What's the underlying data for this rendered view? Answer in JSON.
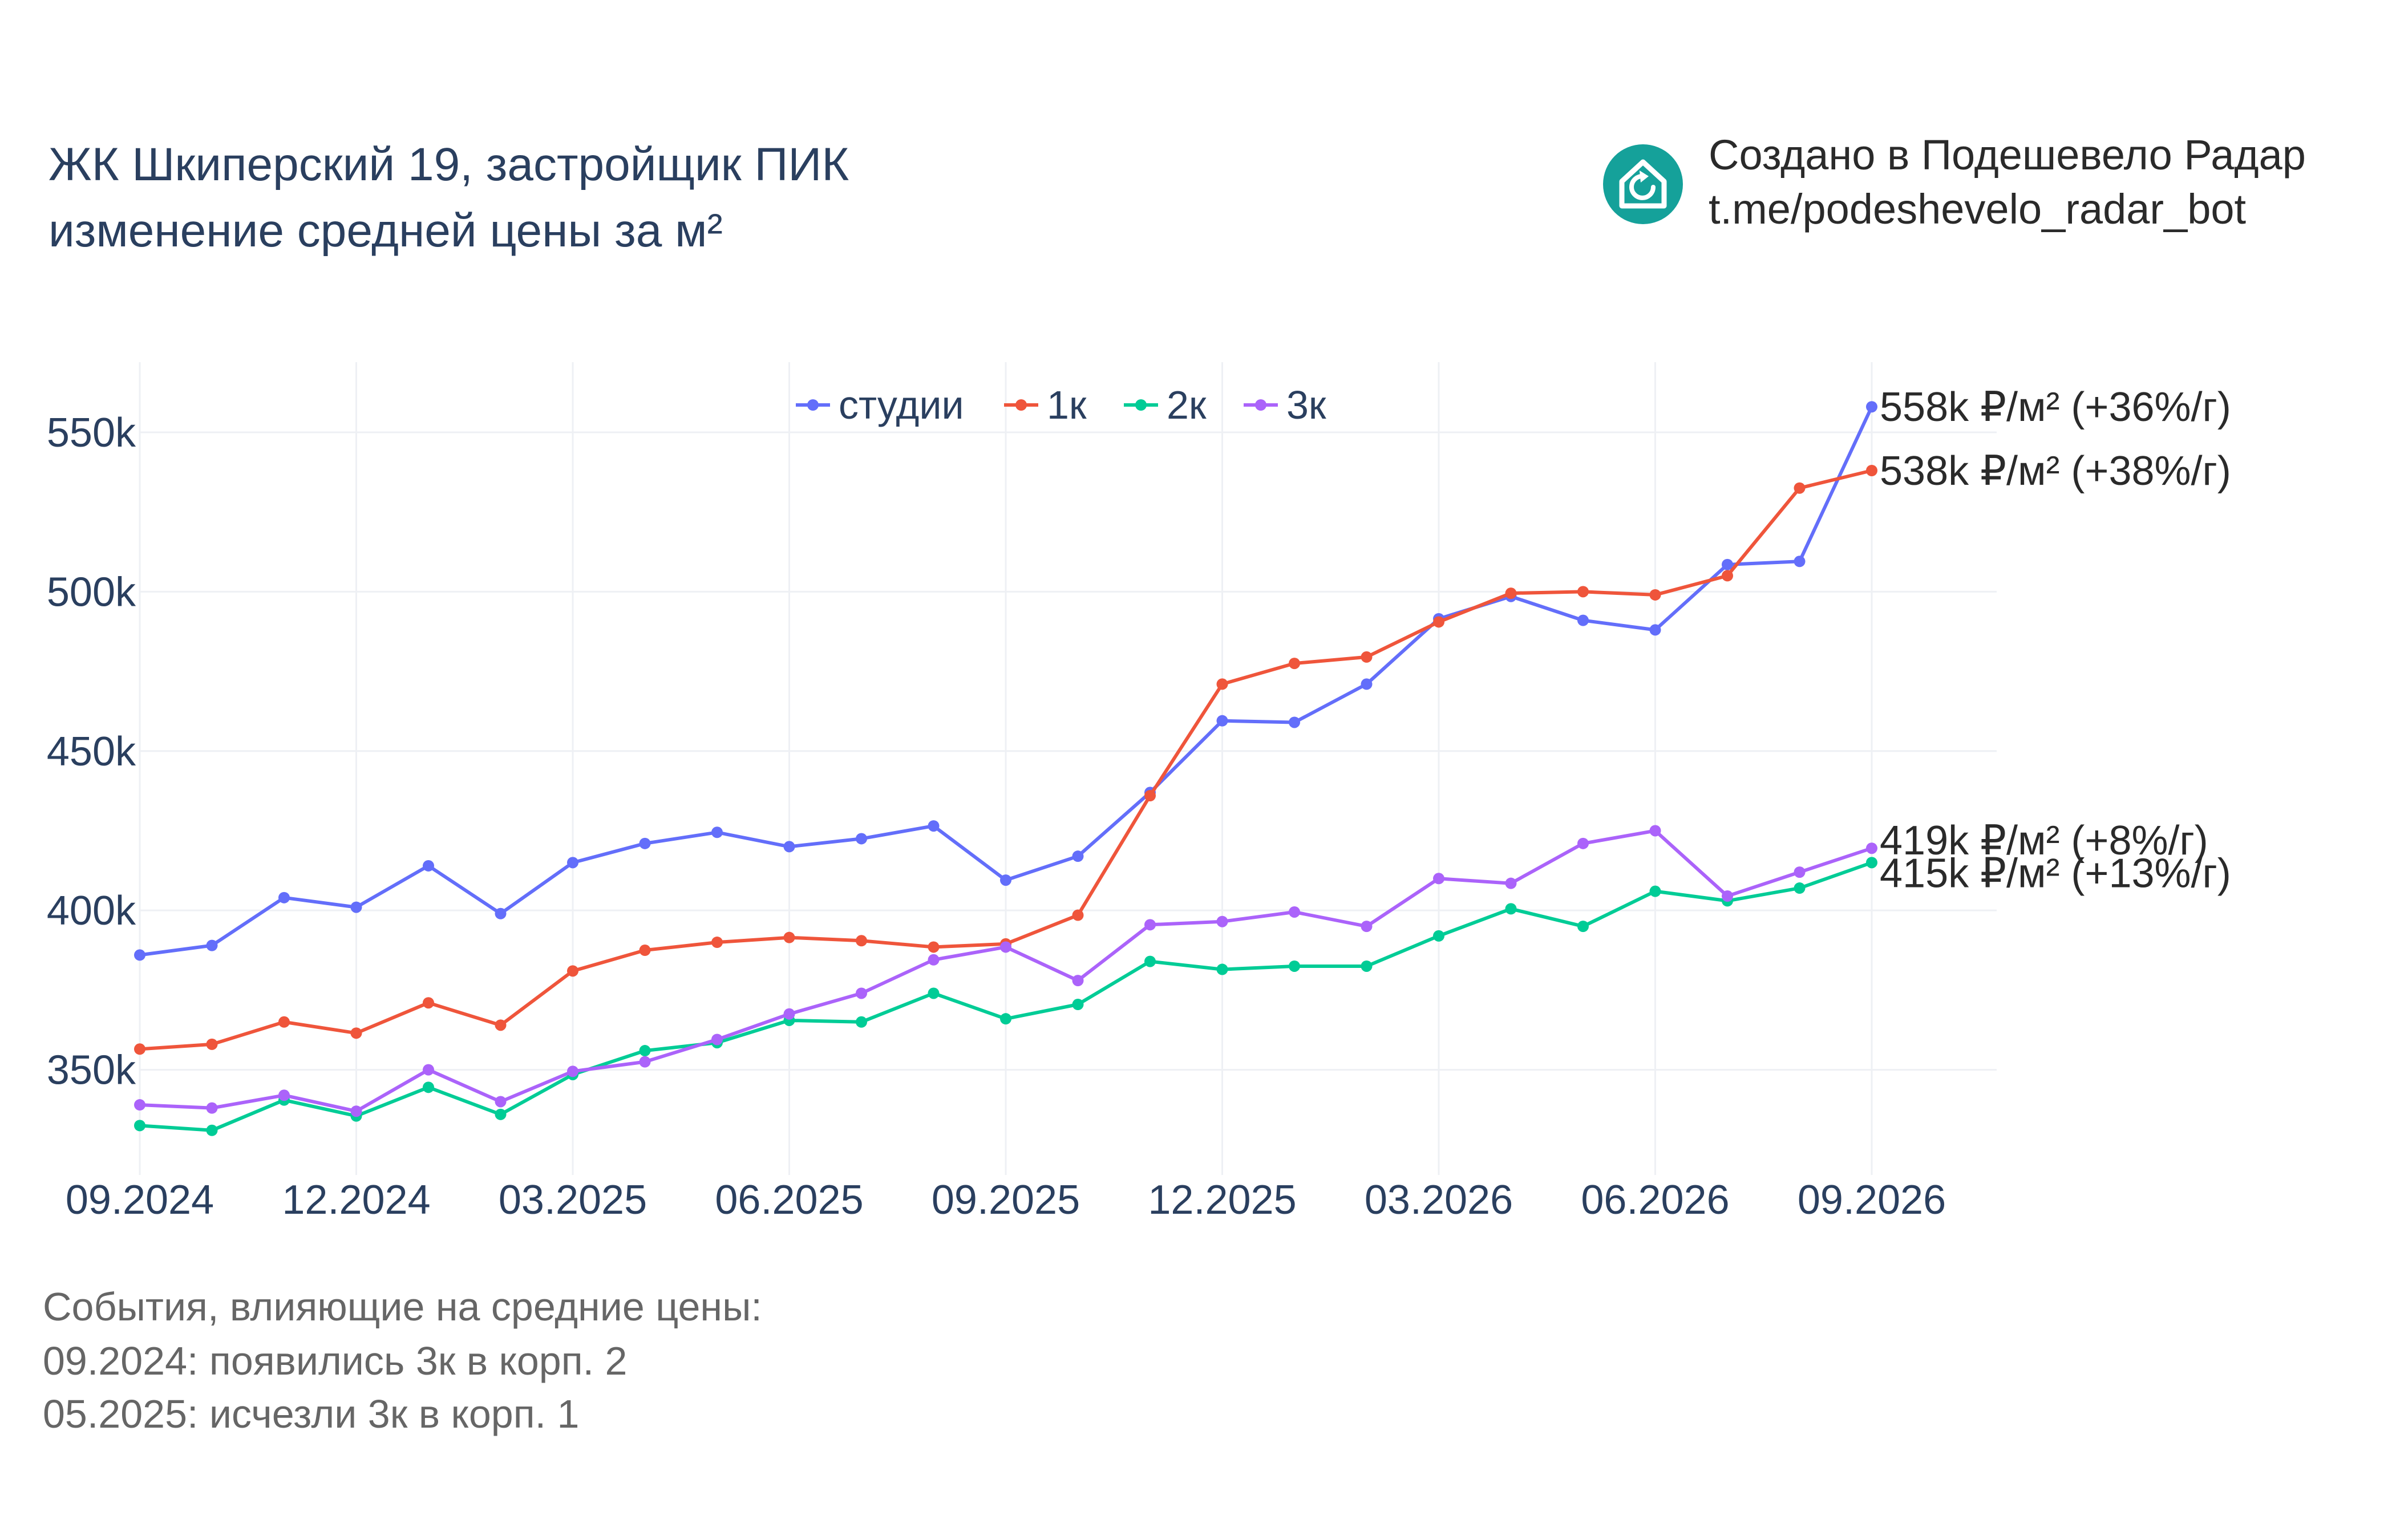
{
  "title_lines": [
    "ЖК Шкиперский 19, застройщик ПИК",
    "изменение средней цены за м²"
  ],
  "credit": {
    "logo_icon": "house-refresh-icon",
    "logo_color": "#15a19a",
    "lines": [
      "Создано в Подешевело Радар",
      "t.me/podeshevelo_radar_bot"
    ]
  },
  "events": {
    "heading": "События, влияющие на средние цены:",
    "items": [
      "09.2024: появились 3к в корп. 2",
      "05.2025: исчезли 3к в корп. 1"
    ]
  },
  "chart_data": {
    "type": "line",
    "x_start": "09.2024",
    "x_tick_labels": [
      "09.2024",
      "12.2024",
      "03.2025",
      "06.2025",
      "09.2025",
      "12.2025",
      "03.2026",
      "06.2026",
      "09.2026"
    ],
    "y_tick_values": [
      350000,
      400000,
      450000,
      500000,
      550000
    ],
    "y_tick_labels": [
      "350k",
      "400k",
      "450k",
      "500k",
      "550k"
    ],
    "ylim": [
      317000,
      572000
    ],
    "grid": true,
    "legend_position": "top-center",
    "series": [
      {
        "name": "студии",
        "color": "#636efa",
        "values": [
          386000,
          389000,
          404000,
          401000,
          414000,
          399000,
          415000,
          421000,
          424500,
          420000,
          422500,
          426500,
          409500,
          417000,
          437000,
          459500,
          459000,
          471000,
          491500,
          498500,
          491000,
          488000,
          508500,
          509500,
          558000
        ],
        "end_label": "558k ₽/м² (+36%/г)"
      },
      {
        "name": "1к",
        "color": "#ef553b",
        "values": [
          356500,
          358000,
          365000,
          361500,
          371000,
          364000,
          381000,
          387500,
          390000,
          391500,
          390500,
          388500,
          389500,
          398500,
          436000,
          471000,
          477500,
          479500,
          490500,
          499500,
          500000,
          499000,
          505000,
          532500,
          538000
        ],
        "end_label": "538k ₽/м² (+38%/г)"
      },
      {
        "name": "2к",
        "color": "#00cc96",
        "values": [
          332500,
          331000,
          340500,
          335500,
          344500,
          336000,
          348500,
          356000,
          358500,
          365500,
          365000,
          374000,
          366000,
          370500,
          384000,
          381500,
          382500,
          382500,
          392000,
          400500,
          395000,
          406000,
          403000,
          407000,
          415000
        ],
        "end_label": "415k ₽/м² (+13%/г)"
      },
      {
        "name": "3к",
        "color": "#ab63fa",
        "values": [
          339000,
          338000,
          342000,
          337000,
          350000,
          340000,
          349500,
          352500,
          359500,
          367500,
          374000,
          384500,
          388500,
          378000,
          395500,
          396500,
          399500,
          395000,
          410000,
          408500,
          421000,
          425000,
          404500,
          412000,
          419500
        ],
        "end_label": "419k ₽/м² (+8%/г)"
      }
    ]
  }
}
